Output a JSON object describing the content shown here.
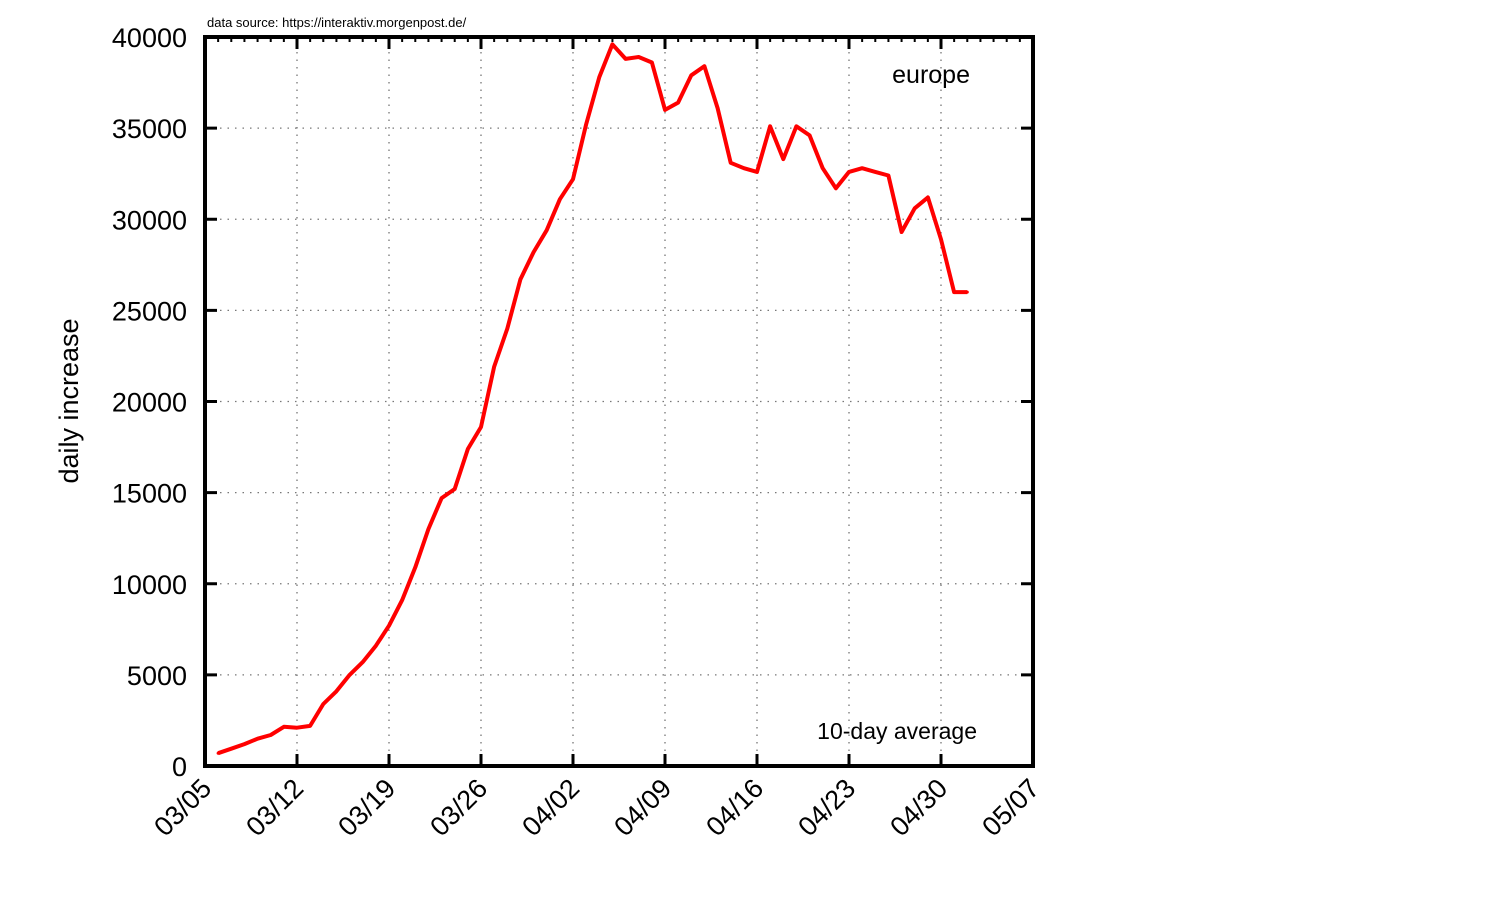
{
  "chart_data": {
    "type": "line",
    "source_note": "data source: https://interaktiv.morgenpost.de/",
    "title": "europe",
    "annotation": "10-day average",
    "ylabel": "daily increase",
    "xlabel": "",
    "x_tick_labels": [
      "03/05",
      "03/12",
      "03/19",
      "03/26",
      "04/02",
      "04/09",
      "04/16",
      "04/23",
      "04/30",
      "05/07"
    ],
    "y_tick_labels": [
      "0",
      "5000",
      "10000",
      "15000",
      "20000",
      "25000",
      "30000",
      "35000",
      "40000"
    ],
    "xlim": [
      "03/05",
      "05/07"
    ],
    "ylim": [
      0,
      40000
    ],
    "grid": true,
    "series": [
      {
        "color": "#ff0000",
        "points": [
          [
            "03/06",
            700
          ],
          [
            "03/07",
            950
          ],
          [
            "03/08",
            1200
          ],
          [
            "03/09",
            1500
          ],
          [
            "03/10",
            1700
          ],
          [
            "03/11",
            2150
          ],
          [
            "03/12",
            2100
          ],
          [
            "03/13",
            2200
          ],
          [
            "03/14",
            3400
          ],
          [
            "03/15",
            4100
          ],
          [
            "03/16",
            5000
          ],
          [
            "03/17",
            5700
          ],
          [
            "03/18",
            6600
          ],
          [
            "03/19",
            7700
          ],
          [
            "03/20",
            9100
          ],
          [
            "03/21",
            10900
          ],
          [
            "03/22",
            13000
          ],
          [
            "03/23",
            14700
          ],
          [
            "03/24",
            15200
          ],
          [
            "03/25",
            17400
          ],
          [
            "03/26",
            18600
          ],
          [
            "03/27",
            21900
          ],
          [
            "03/28",
            24000
          ],
          [
            "03/29",
            26700
          ],
          [
            "03/30",
            28200
          ],
          [
            "03/31",
            29400
          ],
          [
            "04/01",
            31100
          ],
          [
            "04/02",
            32200
          ],
          [
            "04/03",
            35200
          ],
          [
            "04/04",
            37800
          ],
          [
            "04/05",
            39600
          ],
          [
            "04/06",
            38800
          ],
          [
            "04/07",
            38900
          ],
          [
            "04/08",
            38600
          ],
          [
            "04/09",
            36000
          ],
          [
            "04/10",
            36400
          ],
          [
            "04/11",
            37900
          ],
          [
            "04/12",
            38400
          ],
          [
            "04/13",
            36100
          ],
          [
            "04/14",
            33100
          ],
          [
            "04/15",
            32800
          ],
          [
            "04/16",
            32600
          ],
          [
            "04/17",
            35100
          ],
          [
            "04/18",
            33300
          ],
          [
            "04/19",
            35100
          ],
          [
            "04/20",
            34600
          ],
          [
            "04/21",
            32800
          ],
          [
            "04/22",
            31700
          ],
          [
            "04/23",
            32600
          ],
          [
            "04/24",
            32800
          ],
          [
            "04/25",
            32600
          ],
          [
            "04/26",
            32400
          ],
          [
            "04/27",
            29300
          ],
          [
            "04/28",
            30600
          ],
          [
            "04/29",
            31200
          ],
          [
            "04/30",
            28900
          ],
          [
            "05/01",
            26000
          ],
          [
            "05/02",
            26000
          ]
        ]
      }
    ]
  }
}
